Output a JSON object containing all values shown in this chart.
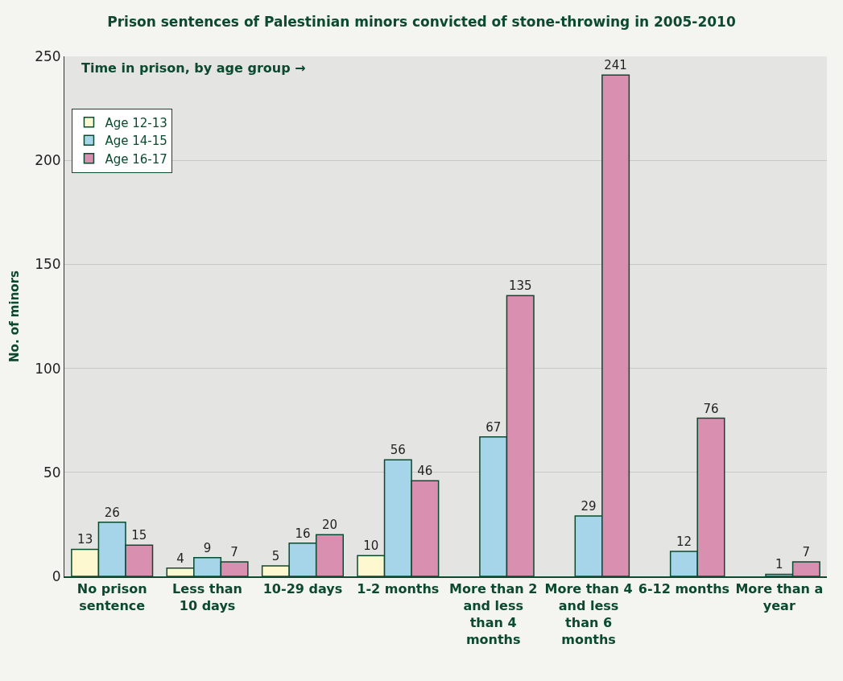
{
  "chart_data": {
    "type": "bar",
    "title": "Prison sentences of Palestinian minors convicted of stone-throwing in 2005-2010",
    "ylabel": "No. of minors",
    "annotations": [
      "Time in prison, by age group →"
    ],
    "categories": [
      "No prison sentence",
      "Less than 10 days",
      "10-29 days",
      "1-2 months",
      "More than 2 and less than 4 months",
      "More than 4 and less than 6 months",
      "6-12 months",
      "More than a year"
    ],
    "series": [
      {
        "name": "Age 12-13",
        "color": "#fdf8d0",
        "values": [
          13,
          4,
          5,
          10,
          null,
          null,
          null,
          null
        ],
        "value_labels": [
          "13",
          "4",
          "5",
          "10",
          null,
          null,
          null,
          null
        ]
      },
      {
        "name": "Age 14-15",
        "color": "#a6d4e8",
        "values": [
          26,
          9,
          16,
          56,
          67,
          29,
          12,
          1
        ],
        "value_labels": [
          "26",
          "9",
          "16",
          "56",
          "67",
          "29",
          "12",
          "1"
        ]
      },
      {
        "name": "Age 16-17",
        "color": "#d98fb0",
        "values": [
          15,
          7,
          20,
          46,
          135,
          241,
          76,
          7
        ],
        "value_labels": [
          "15",
          "7",
          "20",
          "46",
          "135",
          "241",
          "76",
          "7"
        ]
      }
    ],
    "ylim": [
      0,
      250
    ],
    "yticks": [
      0,
      50,
      100,
      150,
      200,
      250
    ],
    "grid": "y",
    "legend": "top left"
  }
}
